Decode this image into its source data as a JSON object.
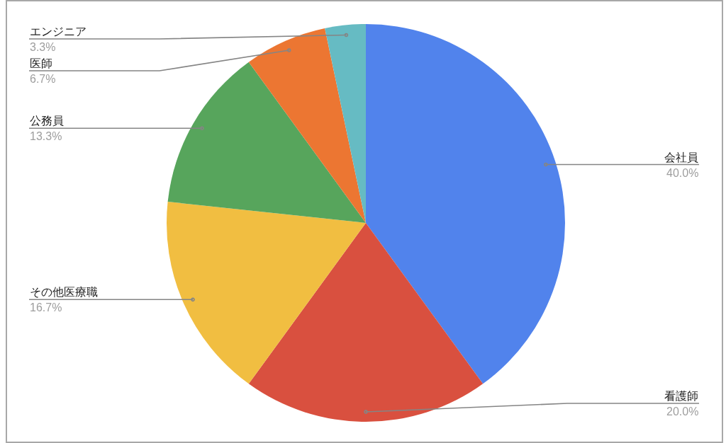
{
  "chart_data": {
    "type": "pie",
    "categories": [
      "会社員",
      "看護師",
      "その他医療職",
      "公務員",
      "医師",
      "エンジニア"
    ],
    "values": [
      40,
      20,
      16.7,
      13.3,
      6.7,
      3.3
    ],
    "colors": [
      "#5183ec",
      "#d9503f",
      "#f1be41",
      "#57a55c",
      "#ec7632",
      "#66bbc3"
    ],
    "value_labels": [
      "40.0%",
      "20.0%",
      "16.7%",
      "13.3%",
      "6.7%",
      "3.3%"
    ]
  }
}
